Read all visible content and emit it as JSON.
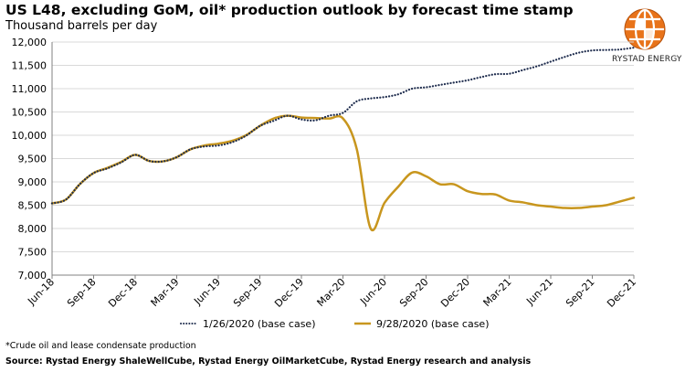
{
  "title": "US L48, excluding GoM, oil* production outlook by forecast time stamp",
  "subtitle": "Thousand barrels per day",
  "logo": {
    "text": "RYSTAD ENERGY",
    "icon": "rystad-globe-icon",
    "color": "#e8731a"
  },
  "footnote": "*Crude oil and lease condensate production",
  "source": "Source: Rystad Energy ShaleWellCube, Rystad Energy OilMarketCube, Rystad Energy research and analysis",
  "chart_data": {
    "type": "line",
    "title": "US L48, excluding GoM, oil* production outlook by forecast time stamp",
    "ylabel": "Thousand barrels per day",
    "xlabel": "",
    "ylim": [
      7000,
      12000
    ],
    "yticks": [
      7000,
      7500,
      8000,
      8500,
      9000,
      9500,
      10000,
      10500,
      11000,
      11500,
      12000
    ],
    "ytick_labels": [
      "7,000",
      "7,500",
      "8,000",
      "8,500",
      "9,000",
      "9,500",
      "10,000",
      "10,500",
      "11,000",
      "11,500",
      "12,000"
    ],
    "xtick_labels": [
      "Jun-18",
      "Sep-18",
      "Dec-18",
      "Mar-19",
      "Jun-19",
      "Sep-19",
      "Dec-19",
      "Mar-20",
      "Jun-20",
      "Sep-20",
      "Dec-20",
      "Mar-21",
      "Jun-21",
      "Sep-21",
      "Dec-21"
    ],
    "grid": "horizontal",
    "legend_position": "bottom",
    "series": [
      {
        "name": "1/26/2020 (base case)",
        "color": "#1f2d4e",
        "style": "dotted",
        "x": [
          0,
          1,
          2,
          3,
          4,
          5,
          6,
          7,
          8,
          9,
          10,
          11,
          12,
          13,
          14,
          15,
          16,
          17,
          18,
          19,
          20,
          21,
          22,
          23,
          24,
          25,
          26,
          27,
          28,
          29,
          30,
          31,
          32,
          33,
          34,
          35,
          36,
          37,
          38,
          39,
          40,
          41,
          42
        ],
        "values": [
          8540,
          8620,
          8950,
          9190,
          9290,
          9420,
          9580,
          9450,
          9440,
          9530,
          9700,
          9760,
          9780,
          9850,
          9990,
          10200,
          10310,
          10420,
          10340,
          10320,
          10420,
          10480,
          10730,
          10790,
          10820,
          10880,
          11000,
          11030,
          11080,
          11130,
          11180,
          11250,
          11310,
          11320,
          11400,
          11480,
          11580,
          11680,
          11770,
          11820,
          11830,
          11840,
          11880
        ]
      },
      {
        "name": "9/28/2020 (base case)",
        "color": "#c8961e",
        "style": "solid",
        "x": [
          0,
          1,
          2,
          3,
          4,
          5,
          6,
          7,
          8,
          9,
          10,
          11,
          12,
          13,
          14,
          15,
          16,
          17,
          18,
          19,
          20,
          21,
          22,
          23,
          24,
          25,
          26,
          27,
          28,
          29,
          30,
          31,
          32,
          33,
          34,
          35,
          36,
          37,
          38,
          39,
          40,
          41,
          42
        ],
        "values": [
          8540,
          8620,
          8950,
          9190,
          9300,
          9430,
          9580,
          9450,
          9440,
          9530,
          9700,
          9780,
          9820,
          9880,
          10000,
          10200,
          10360,
          10420,
          10380,
          10370,
          10360,
          10360,
          9700,
          8000,
          8550,
          8900,
          9200,
          9120,
          8950,
          8950,
          8800,
          8740,
          8730,
          8600,
          8560,
          8500,
          8470,
          8440,
          8440,
          8470,
          8500,
          8580,
          8660
        ]
      }
    ]
  }
}
